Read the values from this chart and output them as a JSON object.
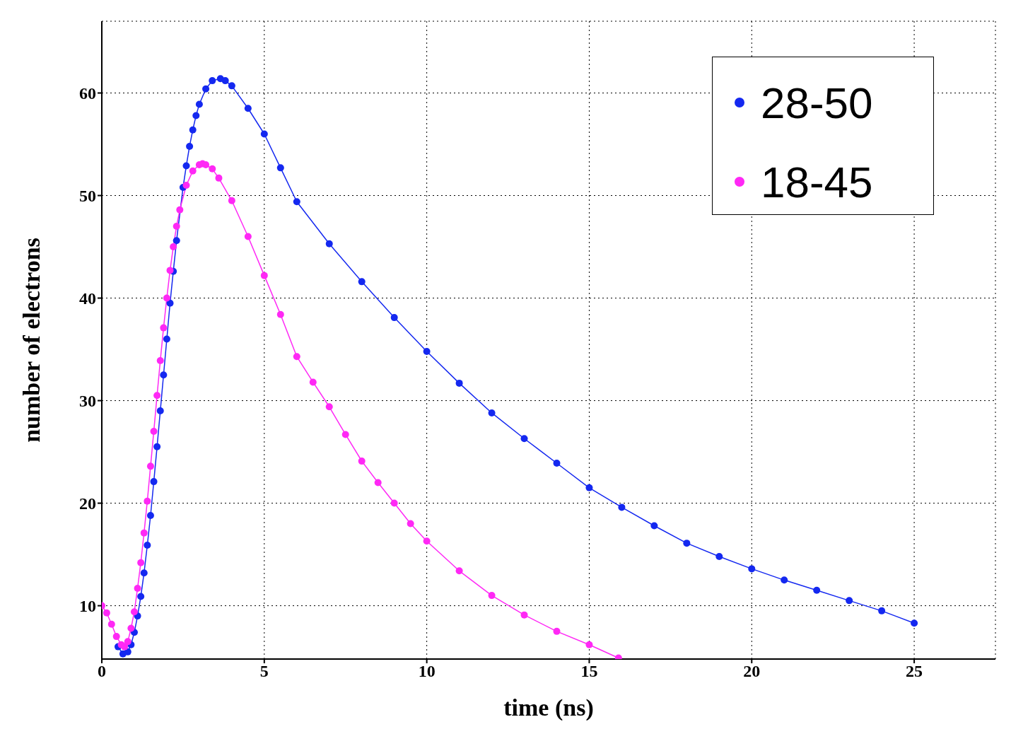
{
  "chart_data": {
    "type": "line",
    "xlabel": "time (ns)",
    "ylabel": "number of electrons",
    "xlim": [
      0,
      27.5
    ],
    "ylim": [
      4.8,
      67
    ],
    "xticks": [
      0,
      5,
      10,
      15,
      20,
      25
    ],
    "yticks": [
      10,
      20,
      30,
      40,
      50,
      60
    ],
    "grid": true,
    "legend": "top right",
    "marker": "circle",
    "line_style": "solid",
    "series": [
      {
        "name": "28-50",
        "color": "#1428f0",
        "x": [
          0.5,
          0.65,
          0.8,
          0.9,
          1.0,
          1.1,
          1.2,
          1.3,
          1.4,
          1.5,
          1.6,
          1.7,
          1.8,
          1.9,
          2.0,
          2.1,
          2.2,
          2.3,
          2.5,
          2.6,
          2.7,
          2.8,
          2.9,
          3.0,
          3.2,
          3.4,
          3.65,
          3.8,
          4,
          4.5,
          5,
          5.5,
          6,
          7,
          8,
          9,
          10,
          11,
          12,
          13,
          14,
          15,
          16,
          17,
          18,
          19,
          20,
          21,
          22,
          23,
          24,
          25
        ],
        "values": [
          6,
          5.3,
          5.5,
          6.2,
          7.4,
          9,
          10.9,
          13.2,
          15.9,
          18.8,
          22.1,
          25.5,
          29,
          32.5,
          36,
          39.5,
          42.6,
          45.6,
          50.8,
          52.9,
          54.8,
          56.4,
          57.8,
          58.9,
          60.4,
          61.2,
          61.4,
          61.2,
          60.7,
          58.5,
          56,
          52.7,
          49.4,
          45.3,
          41.6,
          38.1,
          34.8,
          31.7,
          28.8,
          26.3,
          23.9,
          21.5,
          19.6,
          17.8,
          16.1,
          14.8,
          13.6,
          12.5,
          11.5,
          10.5,
          9.5,
          8.3
        ]
      },
      {
        "name": "18-45",
        "color": "#ff28f5",
        "x": [
          0,
          0.15,
          0.3,
          0.45,
          0.6,
          0.7,
          0.8,
          0.9,
          1.0,
          1.1,
          1.2,
          1.3,
          1.4,
          1.5,
          1.6,
          1.7,
          1.8,
          1.9,
          2.0,
          2.1,
          2.2,
          2.3,
          2.4,
          2.6,
          2.8,
          3.0,
          3.1,
          3.2,
          3.4,
          3.6,
          4,
          4.5,
          5,
          5.5,
          6,
          6.5,
          7,
          7.5,
          8,
          8.5,
          9,
          9.5,
          10,
          11,
          12,
          13,
          14,
          15,
          15.9
        ],
        "values": [
          10,
          9.3,
          8.2,
          7,
          6.2,
          6,
          6.5,
          7.8,
          9.4,
          11.7,
          14.2,
          17.1,
          20.2,
          23.6,
          27,
          30.5,
          33.9,
          37.1,
          40,
          42.7,
          45,
          47,
          48.6,
          51,
          52.4,
          53,
          53.1,
          53,
          52.6,
          51.7,
          49.5,
          46,
          42.2,
          38.4,
          34.3,
          31.8,
          29.4,
          26.7,
          24.1,
          22,
          20,
          18,
          16.3,
          13.4,
          11,
          9.1,
          7.5,
          6.2,
          4.9
        ]
      }
    ]
  }
}
